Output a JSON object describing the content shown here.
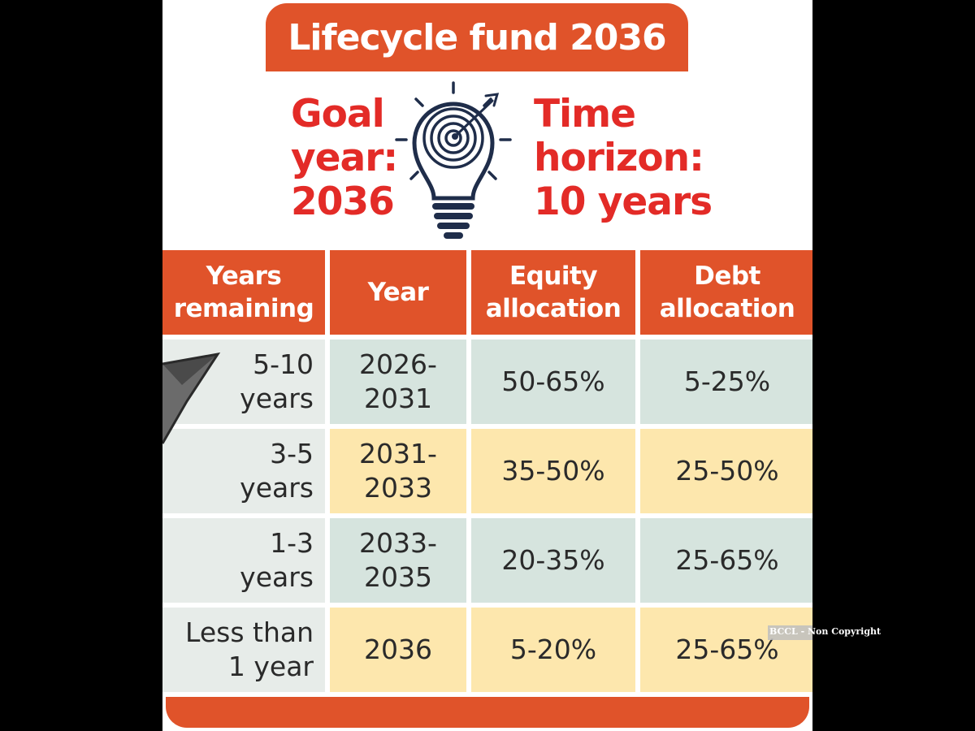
{
  "title": "Lifecycle fund 2036",
  "goal": {
    "line1": "Goal",
    "line2": "year:",
    "line3": "2036"
  },
  "horizon": {
    "line1": "Time",
    "line2": "horizon:",
    "line3": "10 years"
  },
  "table": {
    "headers": [
      {
        "line1": "Years",
        "line2": "remaining"
      },
      {
        "line1": "Year",
        "line2": ""
      },
      {
        "line1": "Equity",
        "line2": "allocation"
      },
      {
        "line1": "Debt",
        "line2": "allocation"
      }
    ],
    "rows": [
      {
        "remaining_1": "5-10",
        "remaining_2": "years",
        "year_1": "2026-",
        "year_2": "2031",
        "equity": "50-65%",
        "debt": "5-25%"
      },
      {
        "remaining_1": "3-5",
        "remaining_2": "years",
        "year_1": "2031-",
        "year_2": "2033",
        "equity": "35-50%",
        "debt": "25-50%"
      },
      {
        "remaining_1": "1-3",
        "remaining_2": "years",
        "year_1": "2033-",
        "year_2": "2035",
        "equity": "20-35%",
        "debt": "25-65%"
      },
      {
        "remaining_1": "Less than",
        "remaining_2": "1 year",
        "year_1": "2036",
        "year_2": "",
        "equity": "5-20%",
        "debt": "25-65%"
      }
    ]
  },
  "icons": {
    "bulb": "lightbulb-target-icon",
    "plane": "paper-plane-icon"
  },
  "colors": {
    "orange": "#e0532a",
    "red_text": "#e32b27",
    "green_row": "#d6e4de",
    "yellow_row": "#fde7ad"
  },
  "watermark": "BCCL - Non Copyright"
}
